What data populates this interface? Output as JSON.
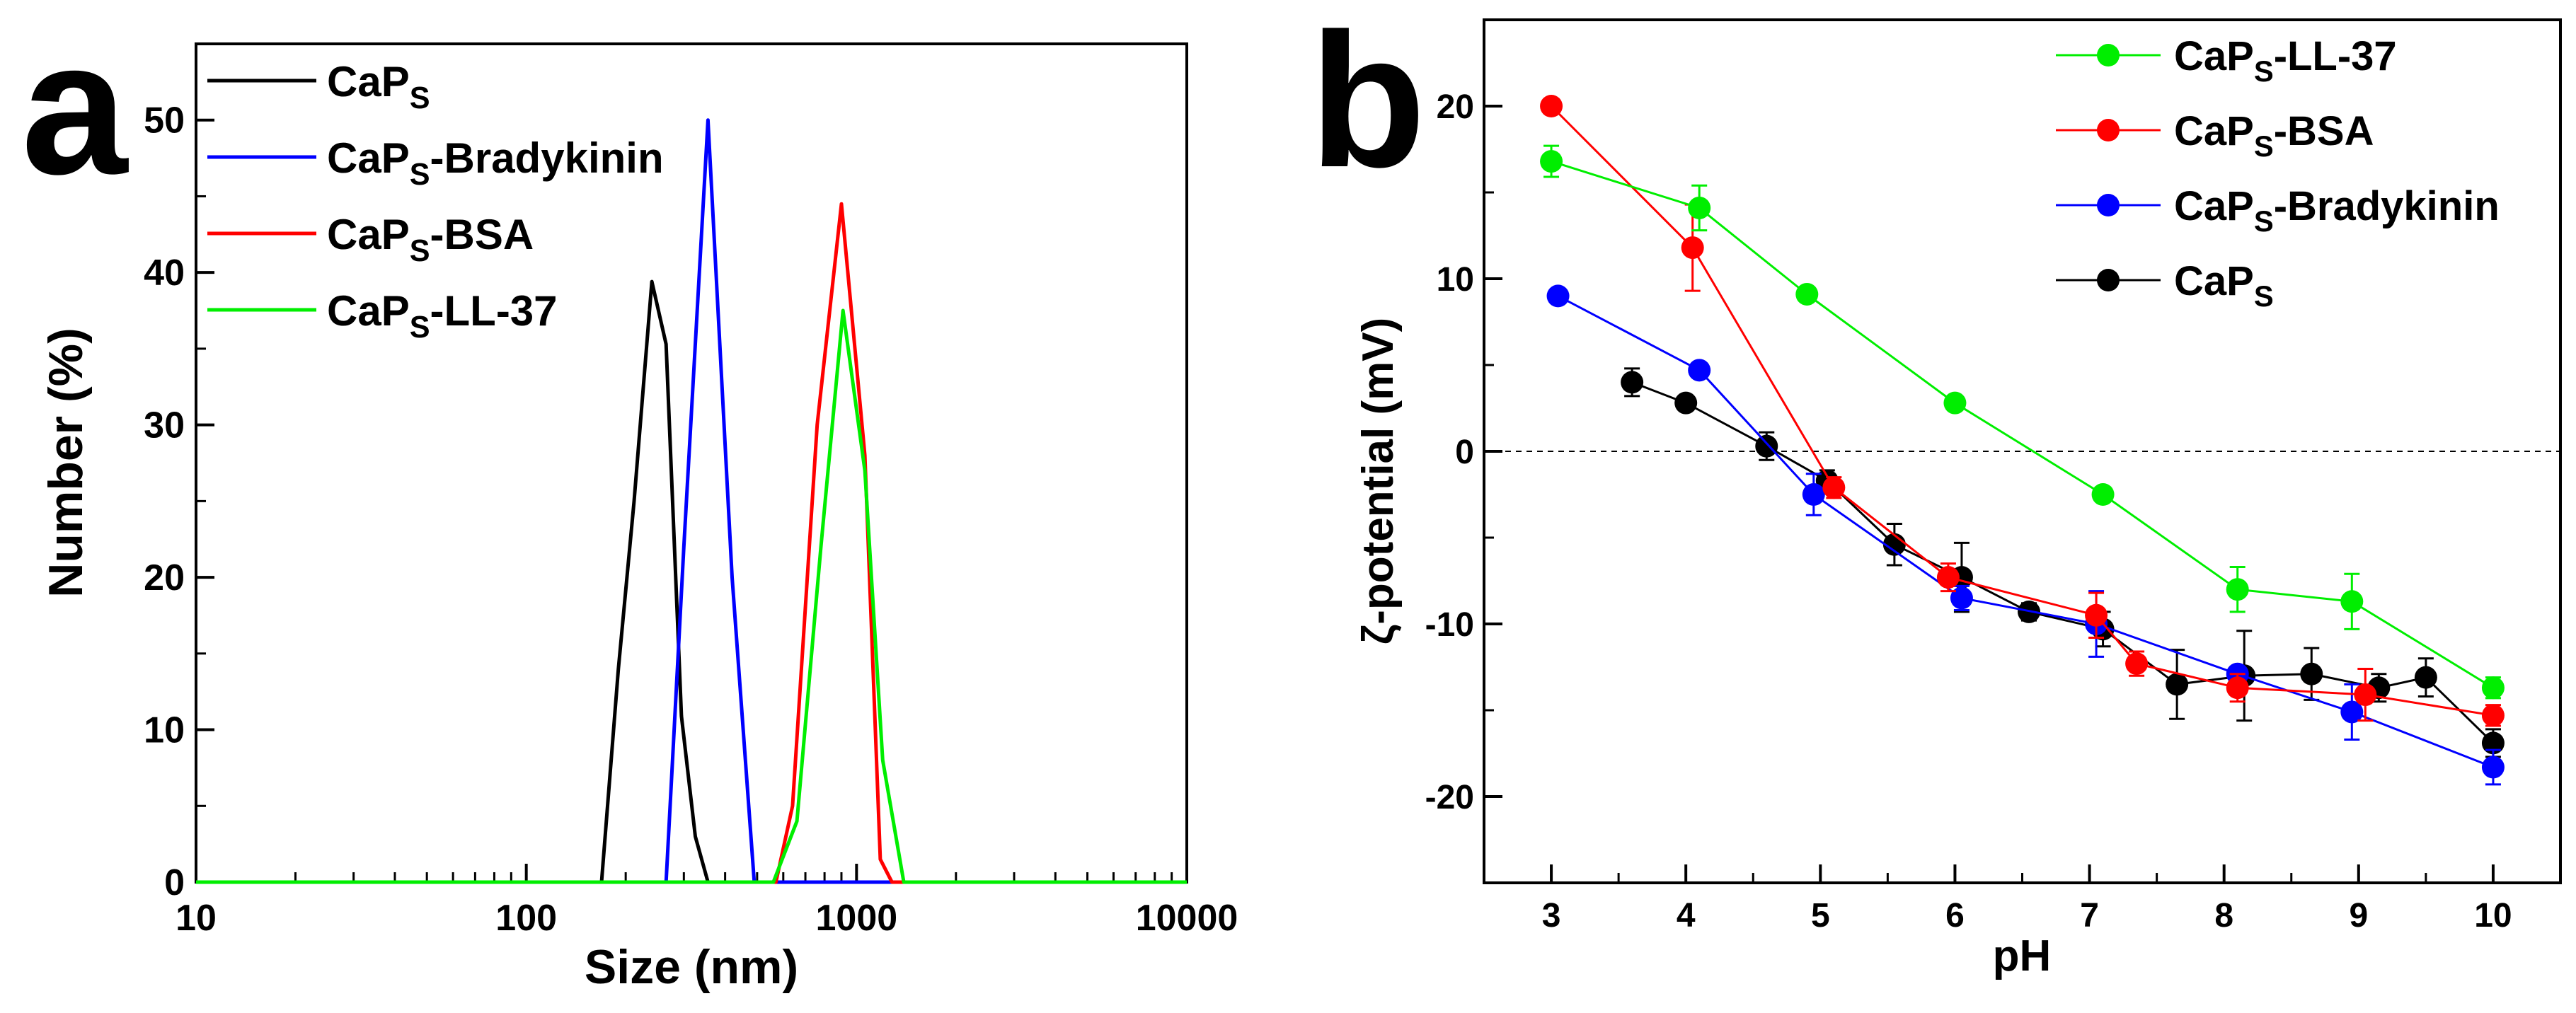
{
  "panel_a": {
    "letter": "a",
    "chart_data": {
      "type": "line",
      "xscale": "log",
      "xlabel": "Size (nm)",
      "ylabel": "Number (%)",
      "xlim": [
        10,
        10000
      ],
      "ylim": [
        0,
        55
      ],
      "xticks": [
        10,
        100,
        1000,
        10000
      ],
      "xtick_labels": [
        "10",
        "100",
        "1000",
        "10000"
      ],
      "yticks": [
        0,
        10,
        20,
        30,
        40,
        50
      ],
      "ytick_labels": [
        "0",
        "10",
        "20",
        "30",
        "40",
        "50"
      ],
      "legend_position": "top-left",
      "series": [
        {
          "name": "CaP",
          "sub": "S",
          "suffix": "",
          "color": "#000000",
          "x": [
            10,
            169,
            190,
            212,
            240,
            265,
            295,
            325,
            355,
            10000
          ],
          "y": [
            0,
            0,
            14,
            25,
            39.4,
            35.3,
            10.9,
            3,
            0,
            0
          ]
        },
        {
          "name": "CaP",
          "sub": "S",
          "suffix": "-Bradykinin",
          "color": "#0000ff",
          "x": [
            10,
            265,
            300,
            355,
            420,
            490,
            10000
          ],
          "y": [
            0,
            0,
            22,
            50,
            20,
            0,
            0
          ]
        },
        {
          "name": "CaP",
          "sub": "S",
          "suffix": "-BSA",
          "color": "#ff0000",
          "x": [
            10,
            570,
            640,
            760,
            900,
            1060,
            1180,
            1280,
            10000
          ],
          "y": [
            0,
            0,
            5,
            30,
            44.5,
            28,
            1.5,
            0,
            0
          ]
        },
        {
          "name": "CaP",
          "sub": "S",
          "suffix": "-LL-37",
          "color": "#00ee00",
          "x": [
            10,
            560,
            660,
            780,
            910,
            1060,
            1200,
            1390,
            10000
          ],
          "y": [
            0,
            0,
            4,
            22,
            37.5,
            27,
            8,
            0,
            0
          ]
        }
      ]
    }
  },
  "panel_b": {
    "letter": "b",
    "chart_data": {
      "type": "scatter",
      "xlabel": "pH",
      "ylabel": "ζ-potential (mV)",
      "xlim": [
        2.5,
        10.5
      ],
      "ylim": [
        -25,
        25
      ],
      "xticks": [
        3,
        4,
        5,
        6,
        7,
        8,
        9,
        10
      ],
      "xtick_labels": [
        "3",
        "4",
        "5",
        "6",
        "7",
        "8",
        "9",
        "10"
      ],
      "yticks": [
        -20,
        -10,
        0,
        10,
        20
      ],
      "ytick_labels": [
        "-20",
        "-10",
        "0",
        "10",
        "20"
      ],
      "reference_line_y": 0,
      "legend_position": "top-right",
      "series": [
        {
          "name": "CaP",
          "sub": "S",
          "suffix": "-LL-37",
          "color": "#00ee00",
          "x": [
            3.0,
            4.1,
            4.9,
            6.0,
            7.1,
            8.1,
            8.95,
            10.0
          ],
          "y": [
            16.8,
            14.1,
            9.1,
            2.8,
            -2.5,
            -8.0,
            -8.7,
            -13.7
          ],
          "err": [
            0.9,
            1.3,
            0.3,
            0.4,
            0.4,
            1.3,
            1.6,
            0.6
          ]
        },
        {
          "name": "CaP",
          "sub": "S",
          "suffix": "-BSA",
          "color": "#ff0000",
          "x": [
            3.0,
            4.05,
            5.1,
            5.95,
            7.05,
            7.35,
            8.1,
            9.05,
            10.0
          ],
          "y": [
            20.0,
            11.8,
            -2.1,
            -7.3,
            -9.5,
            -12.3,
            -13.7,
            -14.1,
            -15.3
          ],
          "err": [
            0.3,
            2.5,
            0.6,
            0.8,
            1.3,
            0.7,
            0.8,
            1.5,
            0.6
          ]
        },
        {
          "name": "CaP",
          "sub": "S",
          "suffix": "-Bradykinin",
          "color": "#0000ff",
          "x": [
            3.05,
            4.1,
            4.95,
            6.05,
            7.05,
            8.1,
            8.95,
            10.0
          ],
          "y": [
            9.0,
            4.7,
            -2.5,
            -8.5,
            -10.0,
            -12.9,
            -15.1,
            -18.3
          ],
          "err": [
            0.3,
            0.3,
            1.2,
            0.7,
            1.9,
            0.4,
            1.6,
            1.0
          ]
        },
        {
          "name": "CaP",
          "sub": "S",
          "suffix": "",
          "color": "#000000",
          "x": [
            3.6,
            4.0,
            4.6,
            5.05,
            5.55,
            6.05,
            6.55,
            7.1,
            7.65,
            8.15,
            8.65,
            9.15,
            9.5,
            10.0
          ],
          "y": [
            4.0,
            2.8,
            0.3,
            -1.7,
            -5.4,
            -7.3,
            -9.3,
            -10.3,
            -13.5,
            -13.0,
            -12.9,
            -13.7,
            -13.1,
            -16.9
          ],
          "err": [
            0.8,
            0.4,
            0.8,
            0.6,
            1.2,
            2.0,
            0.5,
            1.0,
            2.0,
            2.6,
            1.5,
            0.8,
            1.1,
            0.8
          ]
        }
      ]
    }
  }
}
